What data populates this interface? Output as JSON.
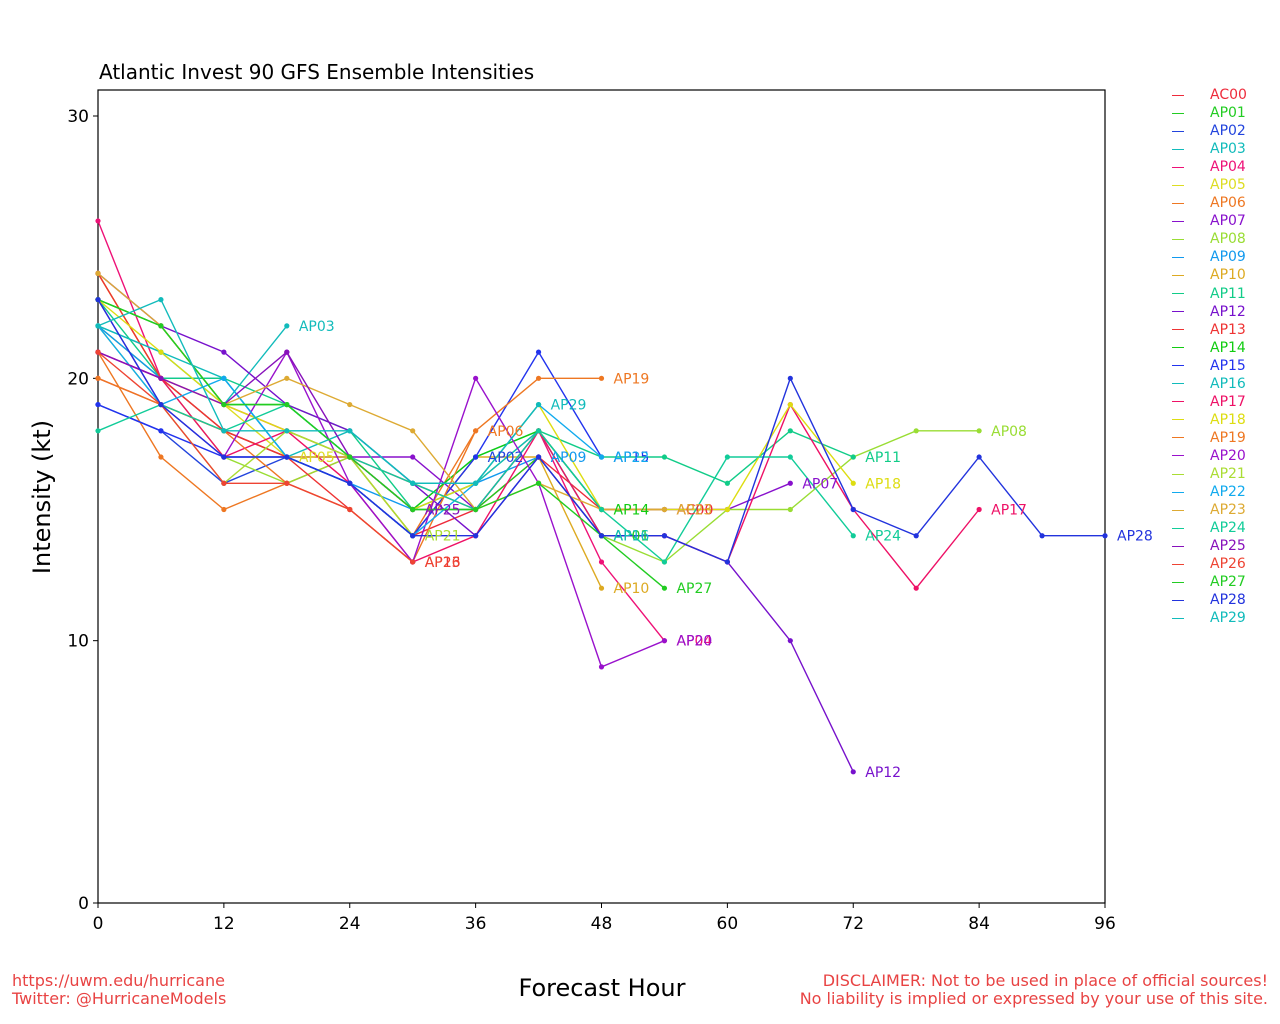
{
  "chart_data": {
    "type": "line",
    "title": "Atlantic Invest 90 GFS Ensemble Intensities",
    "xlabel": "Forecast Hour",
    "ylabel": "Intensity (kt)",
    "xlim": [
      0,
      96
    ],
    "ylim": [
      0,
      31
    ],
    "xticks": [
      0,
      12,
      24,
      36,
      48,
      60,
      72,
      84,
      96
    ],
    "yticks": [
      0,
      10,
      20,
      30
    ],
    "legend_placement": "outside-right",
    "grid": false,
    "series": [
      {
        "name": "AC00",
        "color": "#ee2b3b",
        "x": [
          0,
          6,
          12,
          18,
          24,
          30,
          36,
          42,
          48,
          54
        ],
        "y": [
          20,
          19,
          18,
          17,
          16,
          14,
          15,
          17,
          15,
          15
        ]
      },
      {
        "name": "AP01",
        "color": "#22cc22",
        "x": [
          0,
          6,
          12,
          18,
          24,
          30,
          36,
          42,
          48
        ],
        "y": [
          23,
          22,
          19,
          19,
          17,
          15,
          15,
          17,
          14
        ]
      },
      {
        "name": "AP02",
        "color": "#2244dd",
        "x": [
          0,
          6,
          12,
          18,
          24,
          30,
          36
        ],
        "y": [
          19,
          18,
          16,
          17,
          16,
          14,
          17
        ]
      },
      {
        "name": "AP03",
        "color": "#11bbbb",
        "x": [
          0,
          6,
          12,
          18
        ],
        "y": [
          22,
          21,
          19,
          22
        ]
      },
      {
        "name": "AP04",
        "color": "#ee1177",
        "x": [
          0,
          6,
          12,
          18,
          24,
          30,
          36,
          42,
          48,
          54
        ],
        "y": [
          26,
          20,
          19,
          18,
          17,
          16,
          15,
          18,
          13,
          10
        ]
      },
      {
        "name": "AP05",
        "color": "#dddd22",
        "x": [
          0,
          6,
          12,
          18
        ],
        "y": [
          24,
          20,
          19,
          17
        ]
      },
      {
        "name": "AP06",
        "color": "#ee7722",
        "x": [
          0,
          6,
          12,
          18,
          24,
          30,
          36
        ],
        "y": [
          21,
          17,
          15,
          16,
          17,
          14,
          18
        ]
      },
      {
        "name": "AP07",
        "color": "#8811cc",
        "x": [
          0,
          6,
          12,
          18,
          24,
          30,
          36,
          42,
          48,
          54,
          60,
          66
        ],
        "y": [
          21,
          20,
          18,
          17,
          17,
          17,
          15,
          18,
          15,
          15,
          15,
          16
        ]
      },
      {
        "name": "AP08",
        "color": "#99dd33",
        "x": [
          0,
          6,
          12,
          18,
          24,
          30,
          36,
          42,
          48,
          54,
          60,
          66,
          72,
          78,
          84
        ],
        "y": [
          22,
          20,
          17,
          16,
          17,
          15,
          16,
          18,
          14,
          13,
          15,
          15,
          17,
          18,
          18
        ]
      },
      {
        "name": "AP09",
        "color": "#1199ee",
        "x": [
          0,
          6,
          12,
          18,
          24,
          30,
          36,
          42
        ],
        "y": [
          22,
          20,
          20,
          17,
          16,
          15,
          16,
          17
        ]
      },
      {
        "name": "AP10",
        "color": "#ddaa22",
        "x": [
          0,
          6,
          12,
          18,
          24,
          30,
          36,
          42,
          48
        ],
        "y": [
          24,
          20,
          18,
          17,
          17,
          14,
          17,
          17,
          12
        ]
      },
      {
        "name": "AP11",
        "color": "#11cc88",
        "x": [
          0,
          6,
          12,
          18,
          24,
          30,
          36,
          42,
          48,
          54,
          60,
          66,
          72
        ],
        "y": [
          23,
          20,
          20,
          19,
          18,
          15,
          17,
          18,
          17,
          17,
          16,
          18,
          17
        ]
      },
      {
        "name": "AP12",
        "color": "#7711cc",
        "x": [
          0,
          6,
          12,
          18,
          24,
          30,
          36,
          42,
          48,
          54,
          60,
          66,
          72
        ],
        "y": [
          24,
          22,
          21,
          19,
          18,
          16,
          14,
          17,
          14,
          14,
          13,
          10,
          5
        ]
      },
      {
        "name": "AP13",
        "color": "#ee3333",
        "x": [
          0,
          6,
          12,
          18,
          24,
          30
        ],
        "y": [
          24,
          20,
          18,
          17,
          15,
          13
        ]
      },
      {
        "name": "AP14",
        "color": "#11cc11",
        "x": [
          0,
          6,
          12,
          18,
          24,
          30,
          36,
          42,
          48
        ],
        "y": [
          23,
          22,
          19,
          19,
          17,
          15,
          17,
          18,
          15
        ]
      },
      {
        "name": "AP15",
        "color": "#2233ee",
        "x": [
          0,
          6,
          12,
          18,
          24,
          30,
          36,
          42,
          48
        ],
        "y": [
          19,
          18,
          17,
          17,
          16,
          14,
          17,
          21,
          17
        ]
      },
      {
        "name": "AP16",
        "color": "#11bbbb",
        "x": [
          0,
          6,
          12,
          18,
          24,
          30,
          36,
          42,
          48
        ],
        "y": [
          22,
          21,
          20,
          17,
          18,
          16,
          16,
          18,
          14
        ]
      },
      {
        "name": "AP17",
        "color": "#ee1166",
        "x": [
          0,
          6,
          12,
          18,
          24,
          30,
          36,
          42,
          48,
          54,
          60,
          66,
          72,
          78,
          84
        ],
        "y": [
          21,
          20,
          17,
          18,
          16,
          13,
          14,
          18,
          14,
          14,
          13,
          19,
          15,
          12,
          15
        ]
      },
      {
        "name": "AP18",
        "color": "#dddd11",
        "x": [
          0,
          6,
          12,
          18,
          24,
          30,
          36,
          42,
          48,
          54,
          60,
          66,
          72
        ],
        "y": [
          23,
          21,
          19,
          18,
          17,
          15,
          16,
          19,
          15,
          15,
          15,
          19,
          16
        ]
      },
      {
        "name": "AP19",
        "color": "#ee7722",
        "x": [
          0,
          6,
          12,
          18,
          24,
          30,
          36,
          42,
          48
        ],
        "y": [
          20,
          19,
          18,
          16,
          15,
          13,
          18,
          20,
          20
        ]
      },
      {
        "name": "AP20",
        "color": "#9911cc",
        "x": [
          0,
          6,
          12,
          18,
          24,
          30,
          36,
          42,
          48,
          54
        ],
        "y": [
          23,
          19,
          17,
          21,
          16,
          13,
          20,
          16,
          9,
          10
        ]
      },
      {
        "name": "AP21",
        "color": "#aadd33",
        "x": [
          0,
          6,
          12,
          18,
          24,
          30
        ],
        "y": [
          22,
          19,
          16,
          18,
          17,
          14
        ]
      },
      {
        "name": "AP22",
        "color": "#11aaee",
        "x": [
          0,
          6,
          12,
          18,
          24,
          30,
          36,
          42,
          48
        ],
        "y": [
          22,
          19,
          20,
          17,
          16,
          14,
          16,
          19,
          17
        ]
      },
      {
        "name": "AP23",
        "color": "#ddaa33",
        "x": [
          0,
          6,
          12,
          18,
          24,
          30,
          36,
          42,
          48,
          54
        ],
        "y": [
          24,
          22,
          19,
          20,
          19,
          18,
          15,
          16,
          15,
          15
        ]
      },
      {
        "name": "AP24",
        "color": "#11cc99",
        "x": [
          0,
          6,
          12,
          18,
          24,
          30,
          36,
          42,
          48,
          54,
          60,
          66,
          72
        ],
        "y": [
          18,
          19,
          18,
          19,
          17,
          16,
          15,
          18,
          15,
          13,
          17,
          17,
          14
        ]
      },
      {
        "name": "AP25",
        "color": "#8811bb",
        "x": [
          0,
          6,
          12,
          18,
          24,
          30
        ],
        "y": [
          21,
          20,
          19,
          21,
          17,
          15
        ]
      },
      {
        "name": "AP26",
        "color": "#ee4433",
        "x": [
          0,
          6,
          12,
          18,
          24,
          30
        ],
        "y": [
          21,
          19,
          16,
          16,
          15,
          13
        ]
      },
      {
        "name": "AP27",
        "color": "#22cc22",
        "x": [
          0,
          6,
          12,
          18,
          24,
          30,
          36,
          42,
          48,
          54
        ],
        "y": [
          23,
          22,
          19,
          19,
          17,
          15,
          15,
          16,
          14,
          12
        ]
      },
      {
        "name": "AP28",
        "color": "#2233dd",
        "x": [
          0,
          6,
          12,
          18,
          24,
          30,
          36,
          42,
          48,
          54,
          60,
          66,
          72,
          78,
          84,
          90,
          96
        ],
        "y": [
          23,
          19,
          17,
          17,
          16,
          14,
          14,
          17,
          14,
          14,
          13,
          20,
          15,
          14,
          17,
          14,
          14
        ]
      },
      {
        "name": "AP29",
        "color": "#11bbbb",
        "x": [
          0,
          6,
          12,
          18,
          24,
          30,
          36,
          42
        ],
        "y": [
          22,
          23,
          18,
          18,
          18,
          16,
          16,
          19
        ]
      }
    ]
  },
  "footer": {
    "left_line1": "https://uwm.edu/hurricane",
    "left_line2": "Twitter: @HurricaneModels",
    "right_line1": "DISCLAIMER: Not to be used in place of official sources!",
    "right_line2": "No liability is implied or expressed by your use of this site."
  }
}
